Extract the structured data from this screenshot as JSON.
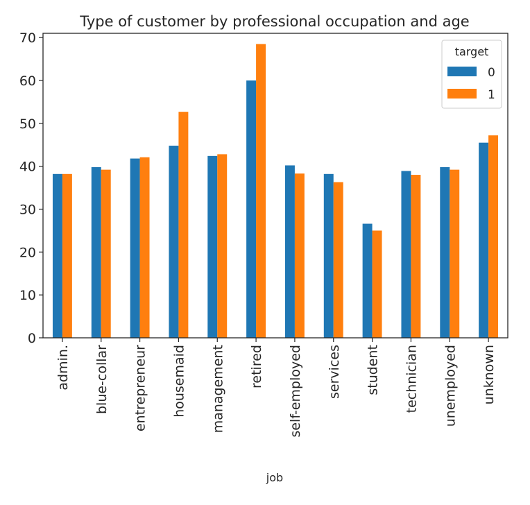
{
  "chart_data": {
    "type": "bar",
    "title": "Type of customer by professional occupation and age",
    "xlabel": "job",
    "ylabel": "",
    "ylim": [
      0,
      71
    ],
    "yticks": [
      0,
      10,
      20,
      30,
      40,
      50,
      60,
      70
    ],
    "grid": false,
    "legend": {
      "title": "target",
      "placement": "top-right"
    },
    "categories": [
      "admin.",
      "blue-collar",
      "entrepreneur",
      "housemaid",
      "management",
      "retired",
      "self-employed",
      "services",
      "student",
      "technician",
      "unemployed",
      "unknown"
    ],
    "series": [
      {
        "name": "0",
        "color": "#1f77b4",
        "values": [
          38.2,
          39.8,
          41.8,
          44.8,
          42.4,
          60.0,
          40.2,
          38.2,
          26.6,
          38.9,
          39.8,
          45.5
        ]
      },
      {
        "name": "1",
        "color": "#ff7f0e",
        "values": [
          38.2,
          39.2,
          42.1,
          52.7,
          42.8,
          68.5,
          38.3,
          36.3,
          25.0,
          38.0,
          39.2,
          47.2
        ]
      }
    ]
  }
}
